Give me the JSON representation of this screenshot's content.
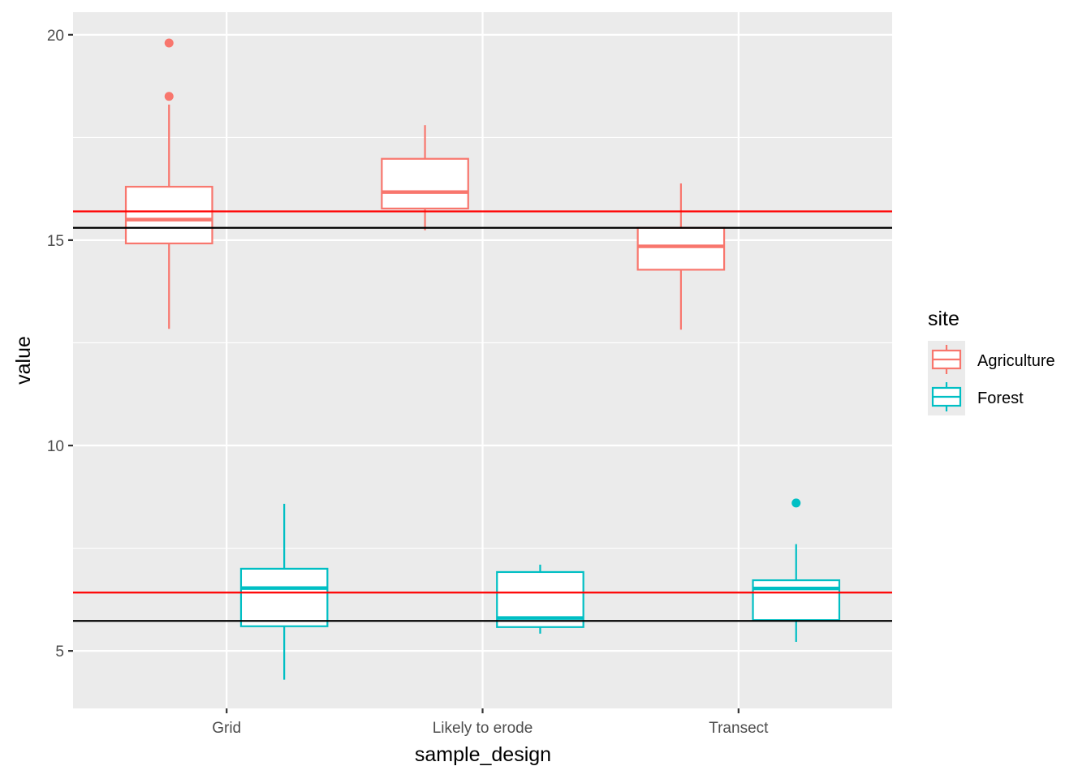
{
  "chart_data": {
    "type": "boxplot",
    "title": "",
    "xlabel": "sample_design",
    "ylabel": "value",
    "categories": [
      "Grid",
      "Likely to erode",
      "Transect"
    ],
    "ylim": [
      3.6,
      20.55
    ],
    "yticks": [
      5,
      10,
      15,
      20
    ],
    "grid": true,
    "legend": {
      "title": "site",
      "position": "right",
      "entries": [
        {
          "name": "Agriculture",
          "color": "#F8766D"
        },
        {
          "name": "Forest",
          "color": "#00BFC4"
        }
      ]
    },
    "series": [
      {
        "name": "Agriculture",
        "color": "#F8766D",
        "boxes": [
          {
            "category": "Grid",
            "whisker_low": 12.84,
            "q1": 14.92,
            "median": 15.5,
            "q3": 16.3,
            "whisker_high": 18.3,
            "outliers": [
              18.5,
              19.8
            ]
          },
          {
            "category": "Likely to erode",
            "whisker_low": 15.24,
            "q1": 15.77,
            "median": 16.17,
            "q3": 16.98,
            "whisker_high": 17.8,
            "outliers": []
          },
          {
            "category": "Transect",
            "whisker_low": 12.82,
            "q1": 14.28,
            "median": 14.85,
            "q3": 15.3,
            "whisker_high": 16.38,
            "outliers": []
          }
        ]
      },
      {
        "name": "Forest",
        "color": "#00BFC4",
        "boxes": [
          {
            "category": "Grid",
            "whisker_low": 4.3,
            "q1": 5.6,
            "median": 6.53,
            "q3": 7.0,
            "whisker_high": 8.58,
            "outliers": []
          },
          {
            "category": "Likely to erode",
            "whisker_low": 5.42,
            "q1": 5.58,
            "median": 5.8,
            "q3": 6.92,
            "whisker_high": 7.1,
            "outliers": []
          },
          {
            "category": "Transect",
            "whisker_low": 5.22,
            "q1": 5.75,
            "median": 6.52,
            "q3": 6.72,
            "whisker_high": 7.6,
            "outliers": [
              8.6
            ]
          }
        ]
      }
    ],
    "hlines": [
      {
        "value": 15.7,
        "color": "#FF0000"
      },
      {
        "value": 15.3,
        "color": "#000000"
      },
      {
        "value": 6.42,
        "color": "#FF0000"
      },
      {
        "value": 5.73,
        "color": "#000000"
      }
    ]
  }
}
